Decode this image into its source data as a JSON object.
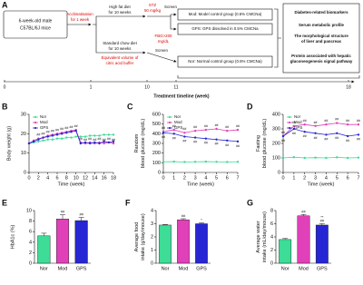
{
  "diagram": {
    "label": "A",
    "start": [
      "6-week-old male",
      "C57BL/6J mice"
    ],
    "acclimatisation": [
      "Acclimatisation",
      "for 1 week"
    ],
    "hfd": [
      "High fat diet",
      "for 10 weeks"
    ],
    "chow": [
      "Standard chow diet",
      "for 10 weeks"
    ],
    "buffer": [
      "Equivalent volume of",
      "citric acid buffer"
    ],
    "stz": [
      "STZ",
      "50 mg/kg"
    ],
    "screen_top": "Screen",
    "fbg": [
      "FBG>200",
      "mg/dL"
    ],
    "screen_bottom": "Screen",
    "groups": [
      "Mod: Model control group (0.5% CMCNa)",
      "GPS: GPS dissolved in 0.5% CMCNa",
      "Nor: Normal control group (0.5% CMCNa)"
    ],
    "outcomes": [
      [
        "Diabetes-related biomarkers"
      ],
      [
        "Serum metabolic profile"
      ],
      [
        "The morphological structure",
        "of liver and pancreas"
      ],
      [
        "Protein associated with hepatic",
        "gluconeogenesis signal pathway"
      ]
    ],
    "timeline_ticks": [
      0,
      1,
      10,
      11,
      18
    ],
    "timeline_label": "Treatment timeline (week)"
  },
  "chart_data": [
    {
      "type": "line",
      "label": "B",
      "xlabel": "Time (week)",
      "ylabel": [
        "Body weight (g)"
      ],
      "x": [
        0,
        1,
        2,
        3,
        4,
        5,
        6,
        7,
        8,
        9,
        10,
        11,
        12,
        13,
        14,
        15,
        16,
        17,
        18
      ],
      "xlim": [
        0,
        18
      ],
      "xticks": [
        0,
        2,
        4,
        6,
        8,
        10,
        12,
        14,
        16,
        18
      ],
      "ylim": [
        0,
        30
      ],
      "yticks": [
        0,
        10,
        20,
        30
      ],
      "legend": "top-left",
      "series": [
        {
          "name": "Nor",
          "color": "#3ddc97",
          "values": [
            15,
            15.5,
            16,
            16.5,
            17,
            17,
            17.5,
            17.5,
            18,
            18,
            18.5,
            18.5,
            18.5,
            19,
            19,
            19,
            19.5,
            19.5,
            19.5
          ]
        },
        {
          "name": "Mod",
          "color": "#e040b8",
          "values": [
            15,
            16.5,
            17.5,
            18,
            19,
            19.5,
            20,
            20.5,
            21,
            21.5,
            22,
            15.5,
            15,
            15.5,
            15,
            15.5,
            15,
            15.5,
            15
          ],
          "sig": [
            null,
            null,
            "##",
            "##",
            "##",
            "##",
            "##",
            "##",
            "##",
            "##",
            "##",
            "##",
            "##",
            "##",
            "##",
            "##",
            "##",
            "##",
            "##"
          ]
        },
        {
          "name": "GPS",
          "color": "#2626d4",
          "values": [
            15,
            16,
            17,
            18,
            18.5,
            19,
            19.5,
            20,
            20.5,
            21,
            21.5,
            15,
            15.5,
            15,
            15.5,
            15,
            16,
            15.5,
            16
          ]
        }
      ]
    },
    {
      "type": "line",
      "label": "C",
      "xlabel": "Time (week)",
      "ylabel": [
        "Random",
        "blood glucose (mg/dL)"
      ],
      "x": [
        0,
        1,
        2,
        3,
        4,
        5,
        6,
        7
      ],
      "xlim": [
        0,
        7
      ],
      "xticks": [
        0,
        1,
        2,
        3,
        4,
        5,
        6,
        7
      ],
      "ylim": [
        0,
        600
      ],
      "yticks": [
        0,
        100,
        200,
        300,
        400,
        500,
        600
      ],
      "legend": "top-left",
      "series": [
        {
          "name": "Nor",
          "color": "#3ddc97",
          "values": [
            110,
            112,
            108,
            110,
            112,
            110,
            108,
            110
          ]
        },
        {
          "name": "Mod",
          "color": "#e040b8",
          "values": [
            420,
            440,
            410,
            430,
            440,
            450,
            430,
            440
          ],
          "sig": [
            "##",
            "##",
            "##",
            "##",
            "##",
            "##",
            "##",
            "##"
          ]
        },
        {
          "name": "GPS",
          "color": "#2626d4",
          "values": [
            410,
            400,
            370,
            360,
            350,
            340,
            330,
            320
          ],
          "sig": [
            "##",
            "##",
            "##",
            "##",
            "##",
            "##",
            "##",
            "##"
          ]
        }
      ]
    },
    {
      "type": "line",
      "label": "D",
      "xlabel": "Time (week)",
      "ylabel": [
        "Fasting",
        "blood glucose (mg/dL)"
      ],
      "x": [
        0,
        1,
        2,
        3,
        4,
        5,
        6,
        7
      ],
      "xlim": [
        0,
        7
      ],
      "xticks": [
        0,
        1,
        2,
        3,
        4,
        5,
        6,
        7
      ],
      "ylim": [
        0,
        400
      ],
      "yticks": [
        0,
        100,
        200,
        300,
        400
      ],
      "legend": "top-left",
      "series": [
        {
          "name": "Nor",
          "color": "#3ddc97",
          "values": [
            100,
            105,
            100,
            102,
            100,
            104,
            100,
            102
          ]
        },
        {
          "name": "Mod",
          "color": "#e040b8",
          "values": [
            250,
            320,
            330,
            320,
            330,
            340,
            330,
            330
          ],
          "sig": [
            "##",
            "##",
            "##",
            "##",
            "##",
            "##",
            "##",
            "##"
          ]
        },
        {
          "name": "GPS",
          "color": "#2626d4",
          "values": [
            250,
            300,
            280,
            270,
            260,
            270,
            250,
            260
          ],
          "sig": [
            "##",
            "##",
            "##",
            "##",
            "##",
            "##",
            "##",
            "##"
          ]
        }
      ]
    },
    {
      "type": "bar",
      "label": "E",
      "ylabel": [
        "HbA1c (%)"
      ],
      "categories": [
        "Nor",
        "Mod",
        "GPS"
      ],
      "values": [
        5.2,
        8.4,
        8.1
      ],
      "errors": [
        0.5,
        0.8,
        0.6
      ],
      "colors": [
        "#3ddc97",
        "#e040b8",
        "#2626d4"
      ],
      "sig": [
        [],
        [
          "##"
        ],
        [
          "##"
        ]
      ],
      "ylim": [
        0,
        10
      ],
      "yticks": [
        0,
        2,
        4,
        6,
        8,
        10
      ]
    },
    {
      "type": "bar",
      "label": "F",
      "ylabel": [
        "Average food",
        "intake (g/day/mouse)"
      ],
      "categories": [
        "Nor",
        "Mod",
        "GPS"
      ],
      "values": [
        2.9,
        3.3,
        3.0
      ],
      "errors": [
        0.05,
        0.08,
        0.06
      ],
      "colors": [
        "#3ddc97",
        "#e040b8",
        "#2626d4"
      ],
      "sig": [
        [],
        [
          "##"
        ],
        [
          "*"
        ]
      ],
      "ylim": [
        0,
        4
      ],
      "yticks": [
        0,
        1,
        2,
        3,
        4
      ]
    },
    {
      "type": "bar",
      "label": "G",
      "ylabel": [
        "Average water",
        "intake (mL/day/mouse)"
      ],
      "categories": [
        "Nor",
        "Mod",
        "GPS"
      ],
      "values": [
        3.6,
        7.2,
        5.8
      ],
      "errors": [
        0.15,
        0.2,
        0.2
      ],
      "colors": [
        "#3ddc97",
        "#e040b8",
        "#2626d4"
      ],
      "sig": [
        [],
        [
          "##"
        ],
        [
          "##",
          "**"
        ]
      ],
      "ylim": [
        0,
        8
      ],
      "yticks": [
        0,
        2,
        4,
        6,
        8
      ]
    }
  ]
}
